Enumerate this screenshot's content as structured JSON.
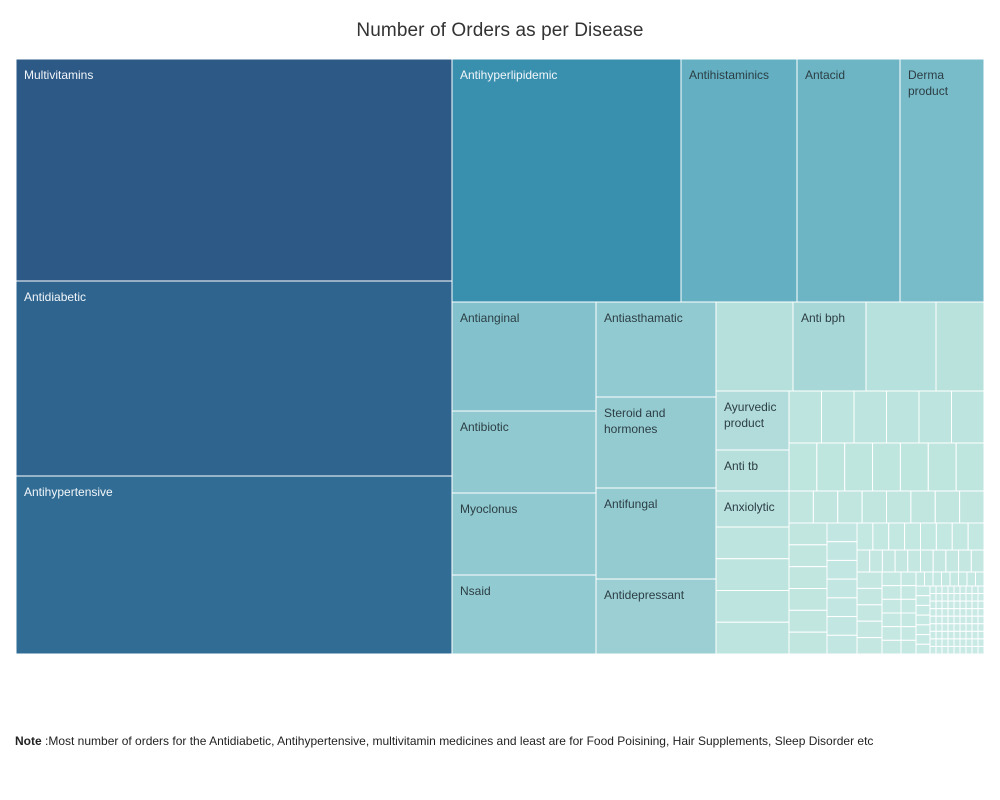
{
  "title": "Number of Orders as per Disease",
  "note": {
    "label": "Note",
    "text": " :Most number of orders for the Antidiabetic, Antihypertensive, multivitamin medicines and least are for Food Poisining, Hair Supplements, Sleep Disorder etc"
  },
  "chart_data": {
    "type": "treemap",
    "title": "Number of Orders as per Disease",
    "measure": "Number of Orders",
    "color_scale": {
      "high": "#2d5986",
      "mid": "#3b98b5",
      "low": "#bfe4df"
    },
    "values": [
      {
        "name": "Multivitamins",
        "value": 96000,
        "label": "Multivitamins"
      },
      {
        "name": "Antidiabetic",
        "value": 86000,
        "label": "Antidiabetic"
      },
      {
        "name": "Antihypertensive",
        "value": 78000,
        "label": "Antihypertensive"
      },
      {
        "name": "Antihyperlipidemic",
        "value": 50000,
        "label": "Antihyperlipidemic"
      },
      {
        "name": "Antihistaminics",
        "value": 26000,
        "label": "Antihistaminics"
      },
      {
        "name": "Antacid",
        "value": 23000,
        "label": "Antacid"
      },
      {
        "name": "Derma product",
        "value": 19000,
        "label": "Derma\nproduct"
      },
      {
        "name": "Antianginal",
        "value": 15500,
        "label": "Antianginal"
      },
      {
        "name": "Antibiotic",
        "value": 11800,
        "label": "Antibiotic"
      },
      {
        "name": "Myoclonus",
        "value": 11800,
        "label": "Myoclonus"
      },
      {
        "name": "Nsaid",
        "value": 11300,
        "label": "Nsaid"
      },
      {
        "name": "Antiasthamatic",
        "value": 11300,
        "label": "Antiasthamatic"
      },
      {
        "name": "Steroid and hormones",
        "value": 10800,
        "label": "Steroid and\nhormones"
      },
      {
        "name": "Antifungal",
        "value": 10700,
        "label": "Antifungal"
      },
      {
        "name": "Antidepressant",
        "value": 9100,
        "label": "Antidepressant"
      },
      {
        "name": "Anti bph",
        "value": 6000,
        "label": "Anti bph"
      },
      {
        "name": "Ayurvedic product",
        "value": 4300,
        "label": "Ayurvedic\nproduct"
      },
      {
        "name": "Anti tb",
        "value": 3300,
        "label": "Anti tb"
      },
      {
        "name": "Anxiolytic",
        "value": 3100,
        "label": "Anxiolytic"
      }
    ]
  }
}
